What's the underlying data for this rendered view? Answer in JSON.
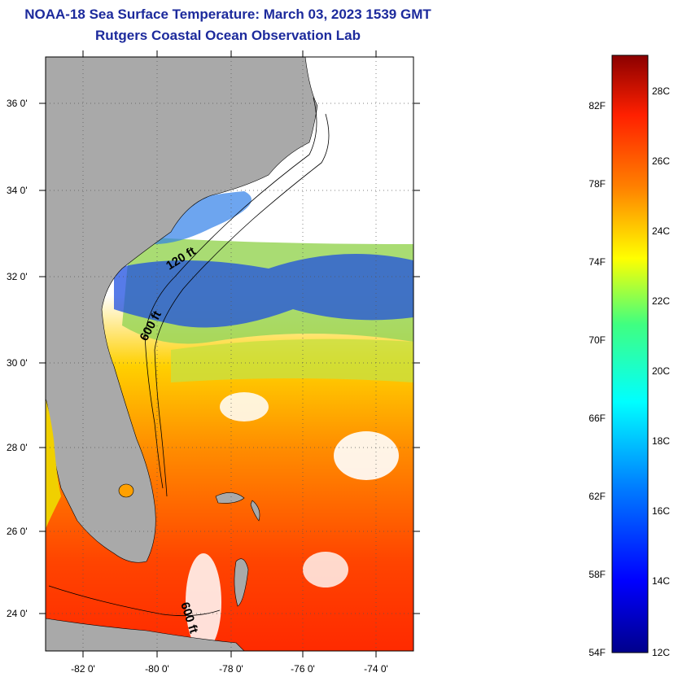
{
  "title": "NOAA-18 Sea Surface Temperature:  March 03, 2023 1539 GMT",
  "subtitle": "Rutgers Coastal Ocean Observation Lab",
  "map": {
    "lat_labels": [
      "36 0'",
      "34 0'",
      "32 0'",
      "30 0'",
      "28 0'",
      "26 0'",
      "24 0'"
    ],
    "lon_labels": [
      "-82 0'",
      "-80 0'",
      "-78 0'",
      "-76 0'",
      "-74 0'"
    ],
    "contour_labels": [
      "120 ft",
      "600 ft",
      "600 ft"
    ],
    "colors": {
      "land": "#a9a9a9",
      "cloud": "#ffffff",
      "frame": "#000000"
    }
  },
  "colorbar": {
    "f_labels": [
      "82F",
      "78F",
      "74F",
      "70F",
      "66F",
      "62F",
      "58F",
      "54F"
    ],
    "c_labels": [
      "28C",
      "26C",
      "24C",
      "22C",
      "20C",
      "18C",
      "16C",
      "14C",
      "12C"
    ],
    "stops": [
      "#00008b",
      "#0000ff",
      "#0080ff",
      "#00ffff",
      "#40ff80",
      "#ffff00",
      "#ff8000",
      "#ff2000",
      "#8b0000"
    ]
  }
}
